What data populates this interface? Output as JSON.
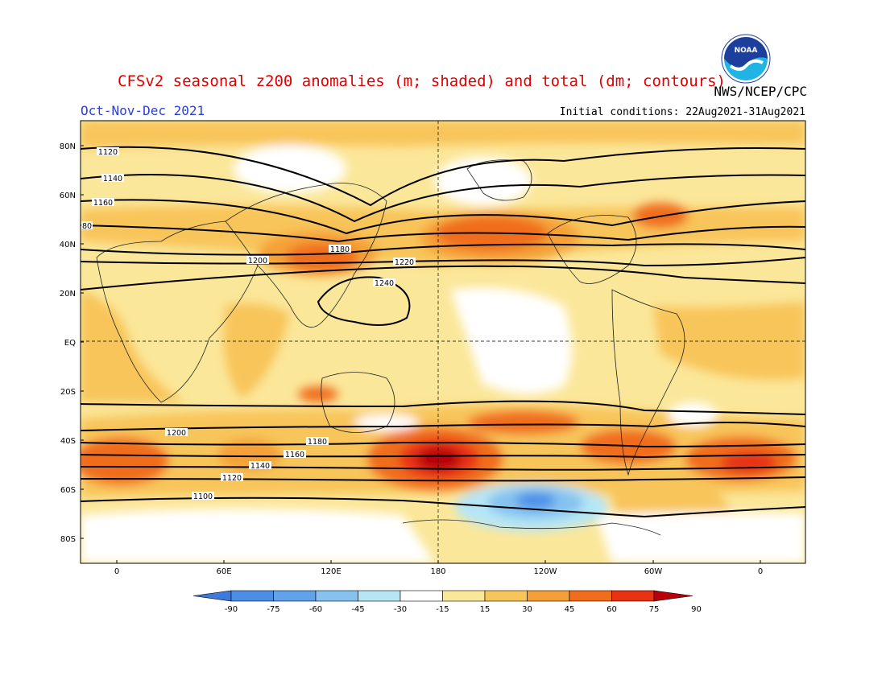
{
  "title": "CFSv2 seasonal z200 anomalies (m; shaded) and total (dm; contours)",
  "agency": "NWS/NCEP/CPC",
  "logo_text": "NOAA",
  "season": "Oct-Nov-Dec 2021",
  "initial_conditions": "Initial conditions: 22Aug2021-31Aug2021",
  "lat_labels": [
    "80N",
    "60N",
    "40N",
    "20N",
    "EQ",
    "20S",
    "40S",
    "60S",
    "80S"
  ],
  "lon_labels": [
    "0",
    "60E",
    "120E",
    "180",
    "120W",
    "60W",
    "0"
  ],
  "colorbar": {
    "labels": [
      "-90",
      "-75",
      "-60",
      "-45",
      "-30",
      "-15",
      "15",
      "30",
      "45",
      "60",
      "75",
      "90"
    ],
    "colors": [
      "#3c7ae0",
      "#4b8ee6",
      "#62a2ea",
      "#86c2f0",
      "#b6e6f6",
      "#ffffff",
      "#fbe79a",
      "#f8c55a",
      "#f5a037",
      "#f06d1c",
      "#e83212",
      "#b8000a"
    ]
  },
  "contour_labels": [
    "1120",
    "1140",
    "1160",
    "1180",
    "1200",
    "1220",
    "1240",
    "1200",
    "1180",
    "1160",
    "1140",
    "1120",
    "1100",
    "80"
  ],
  "colors": {
    "title": "#e00000",
    "season": "#2b3fd8"
  }
}
